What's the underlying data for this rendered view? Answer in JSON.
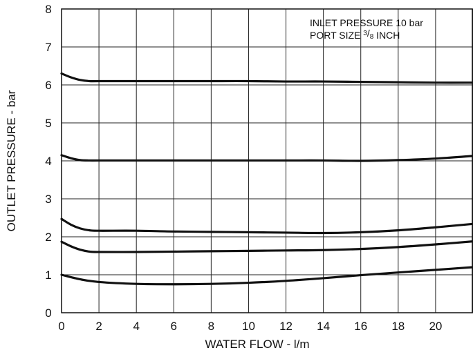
{
  "chart_data": {
    "type": "line",
    "title": "",
    "xlabel": "WATER FLOW - l/m",
    "ylabel": "OUTLET PRESSURE - bar",
    "xlim": [
      0,
      22
    ],
    "ylim": [
      0,
      8
    ],
    "xticks": [
      "0",
      "2",
      "4",
      "6",
      "8",
      "10",
      "12",
      "14",
      "16",
      "18",
      "20"
    ],
    "yticks": [
      "0",
      "1",
      "2",
      "3",
      "4",
      "5",
      "6",
      "7",
      "8"
    ],
    "grid": true,
    "annotations": {
      "line1": "INLET PRESSURE 10 bar",
      "line2_prefix": "PORT SIZE ",
      "fraction_num": "3",
      "fraction_den": "8",
      "line2_suffix": " INCH"
    },
    "series": [
      {
        "x": [
          0,
          0.5,
          1,
          1.5,
          2,
          4,
          6,
          8,
          10,
          12,
          14,
          16,
          18,
          20,
          22
        ],
        "values": [
          6.3,
          6.2,
          6.13,
          6.1,
          6.1,
          6.1,
          6.1,
          6.1,
          6.1,
          6.09,
          6.09,
          6.08,
          6.07,
          6.06,
          6.06
        ]
      },
      {
        "x": [
          0,
          0.5,
          1,
          1.5,
          2,
          4,
          6,
          8,
          10,
          12,
          14,
          16,
          18,
          20,
          22
        ],
        "values": [
          4.15,
          4.07,
          4.02,
          4.01,
          4.01,
          4.01,
          4.01,
          4.01,
          4.01,
          4.01,
          4.01,
          4.0,
          4.02,
          4.06,
          4.13
        ]
      },
      {
        "x": [
          0,
          0.5,
          1,
          1.5,
          2,
          4,
          6,
          8,
          10,
          12,
          14,
          16,
          18,
          20,
          22
        ],
        "values": [
          2.47,
          2.32,
          2.22,
          2.17,
          2.16,
          2.16,
          2.14,
          2.13,
          2.12,
          2.11,
          2.1,
          2.12,
          2.17,
          2.25,
          2.34
        ]
      },
      {
        "x": [
          0,
          0.5,
          1,
          1.5,
          2,
          4,
          6,
          8,
          10,
          12,
          14,
          16,
          18,
          20,
          22
        ],
        "values": [
          1.87,
          1.75,
          1.66,
          1.61,
          1.6,
          1.6,
          1.61,
          1.62,
          1.63,
          1.64,
          1.65,
          1.68,
          1.73,
          1.8,
          1.88
        ]
      },
      {
        "x": [
          0,
          1,
          2,
          4,
          6,
          8,
          10,
          12,
          14,
          16,
          18,
          20,
          22
        ],
        "values": [
          1.0,
          0.88,
          0.81,
          0.76,
          0.75,
          0.76,
          0.79,
          0.84,
          0.91,
          0.99,
          1.06,
          1.13,
          1.2
        ]
      }
    ]
  }
}
